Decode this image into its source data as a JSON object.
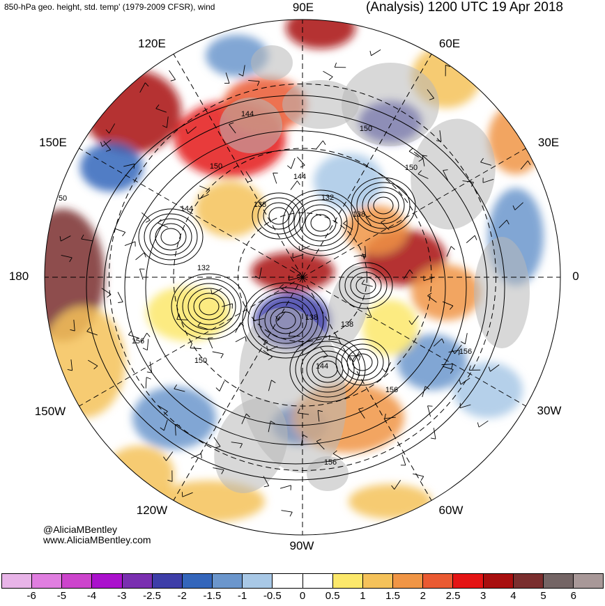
{
  "header": {
    "left_title": "850-hPa geo. height, std. temp' (1979-2009 CFSR), wind",
    "right_title": "(Analysis) 1200 UTC 19 Apr 2018"
  },
  "longitude_labels": [
    "90E",
    "60E",
    "30E",
    "0",
    "30W",
    "60W",
    "90W",
    "120W",
    "150W",
    "180",
    "150E",
    "120E"
  ],
  "height_labels": [
    "144",
    "150",
    "150",
    "150",
    "144",
    "138",
    "132",
    "138",
    "50",
    "144",
    "132",
    "138",
    "138",
    "144",
    "156",
    "150",
    "156",
    "156",
    "156"
  ],
  "credits": {
    "handle": "@AliciaMBentley",
    "site": "www.AliciaMBentley.com"
  },
  "colorbar": {
    "colors": [
      "#e8b4e8",
      "#e07ee0",
      "#cc44cc",
      "#aa11cc",
      "#7a2fb0",
      "#3e3ea8",
      "#3466bb",
      "#6b96cc",
      "#a8c8e6",
      "#ffffff",
      "#ffffff",
      "#fce86b",
      "#f5c25a",
      "#f09545",
      "#ea5a32",
      "#e41414",
      "#a80f0f",
      "#7a2e2e",
      "#746565",
      "#a89898"
    ],
    "tick_labels": [
      "-6",
      "-5",
      "-4",
      "-3",
      "-2.5",
      "-2",
      "-1.5",
      "-1",
      "-0.5",
      "0",
      "0.5",
      "1",
      "1.5",
      "2",
      "2.5",
      "3",
      "4",
      "5",
      "6"
    ]
  }
}
